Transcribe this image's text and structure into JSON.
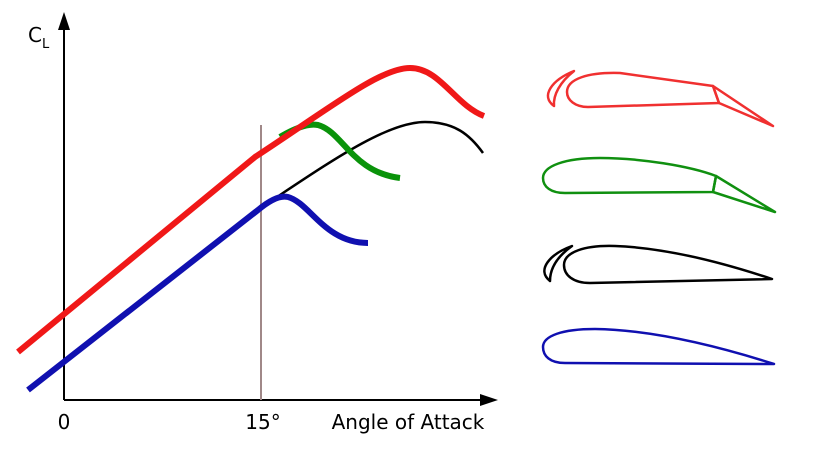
{
  "axes": {
    "y_label": "C",
    "y_label_sub": "L",
    "x_label": "Angle of Attack",
    "x_ticks": [
      "0",
      "15°"
    ]
  }
}
